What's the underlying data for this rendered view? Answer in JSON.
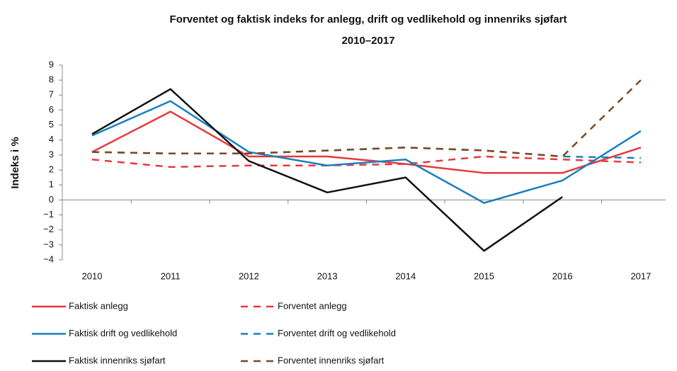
{
  "chart_data": {
    "type": "line",
    "title": "Forventet og faktisk indeks for anlegg, drift og vedlikehold og innenriks sjøfart",
    "subtitle": "2010–2017",
    "y_label": "Indeks i %",
    "categories": [
      "2010",
      "2011",
      "2012",
      "2013",
      "2014",
      "2015",
      "2016",
      "2017"
    ],
    "series": [
      {
        "name": "Faktisk anlegg",
        "color": "#e8383d",
        "dash": false,
        "values": [
          3.2,
          5.9,
          2.9,
          2.9,
          2.4,
          1.8,
          1.8,
          3.5
        ]
      },
      {
        "name": "Forventet anlegg",
        "color": "#e8383d",
        "dash": true,
        "values": [
          2.7,
          2.2,
          2.3,
          2.3,
          2.4,
          2.9,
          2.7,
          2.5
        ]
      },
      {
        "name": "Faktisk drift og vedlikehold",
        "color": "#1a7fc1",
        "dash": false,
        "values": [
          4.3,
          6.6,
          3.2,
          2.3,
          2.7,
          -0.2,
          1.3,
          4.6
        ]
      },
      {
        "name": "Forventet drift og vedlikehold",
        "color": "#1a7fc1",
        "dash": true,
        "values": [
          3.2,
          3.1,
          3.1,
          3.3,
          3.5,
          3.3,
          2.9,
          2.8
        ]
      },
      {
        "name": "Faktisk innenriks sjøfart",
        "color": "#111111",
        "dash": false,
        "values": [
          4.4,
          7.4,
          2.6,
          0.5,
          1.5,
          -3.4,
          0.2,
          null
        ]
      },
      {
        "name": "Forventet innenriks sjøfart",
        "color": "#7b4a1e",
        "dash": true,
        "values": [
          3.2,
          3.1,
          3.1,
          3.3,
          3.5,
          3.3,
          2.9,
          8.0
        ]
      }
    ],
    "ylim": [
      -4,
      9
    ],
    "yticks": [
      {
        "value": -4,
        "label": "−4"
      },
      {
        "value": -3,
        "label": "−3"
      },
      {
        "value": -2,
        "label": "−2"
      },
      {
        "value": -1,
        "label": "−1"
      },
      0,
      1,
      2,
      3,
      4,
      5,
      6,
      7,
      8,
      9
    ],
    "grid": false
  }
}
